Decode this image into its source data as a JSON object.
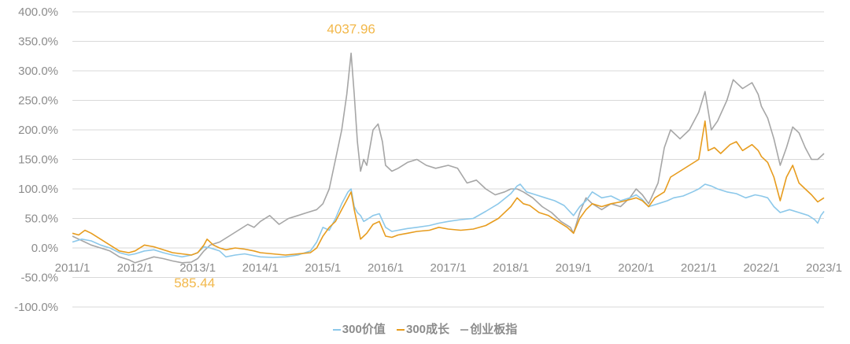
{
  "chart_data": {
    "type": "line",
    "title": "",
    "xlabel": "",
    "ylabel": "",
    "x_ticks": [
      "2011/1",
      "2012/1",
      "2013/1",
      "2014/1",
      "2015/1",
      "2016/1",
      "2017/1",
      "2018/1",
      "2019/1",
      "2020/1",
      "2021/1",
      "2022/1",
      "2023/1"
    ],
    "y_ticks": [
      "400.0%",
      "350.0%",
      "300.0%",
      "250.0%",
      "200.0%",
      "150.0%",
      "100.0%",
      "50.0%",
      "0.0%",
      "-50.0%",
      "-100.0%"
    ],
    "ylim": [
      -100,
      400
    ],
    "xlim": [
      2011.0,
      2023.0
    ],
    "grid": true,
    "legend_position": "bottom",
    "annotations": [
      {
        "text": "4037.96",
        "x": 2015.45,
        "y": 330,
        "color": "#f2b84b"
      },
      {
        "text": "585.44",
        "x": 2012.95,
        "y": -24,
        "color": "#f2b84b"
      }
    ],
    "series": [
      {
        "name": "300价值",
        "color": "#8cc8ea",
        "points": [
          [
            2011.0,
            10
          ],
          [
            2011.15,
            15
          ],
          [
            2011.3,
            12
          ],
          [
            2011.45,
            5
          ],
          [
            2011.6,
            0
          ],
          [
            2011.75,
            -8
          ],
          [
            2011.9,
            -12
          ],
          [
            2012.0,
            -10
          ],
          [
            2012.15,
            -5
          ],
          [
            2012.3,
            -3
          ],
          [
            2012.45,
            -8
          ],
          [
            2012.6,
            -12
          ],
          [
            2012.75,
            -15
          ],
          [
            2012.9,
            -12
          ],
          [
            2013.0,
            -8
          ],
          [
            2013.1,
            2
          ],
          [
            2013.2,
            0
          ],
          [
            2013.35,
            -5
          ],
          [
            2013.45,
            -15
          ],
          [
            2013.6,
            -12
          ],
          [
            2013.75,
            -10
          ],
          [
            2013.9,
            -13
          ],
          [
            2014.0,
            -15
          ],
          [
            2014.2,
            -16
          ],
          [
            2014.4,
            -15
          ],
          [
            2014.6,
            -12
          ],
          [
            2014.8,
            -5
          ],
          [
            2014.9,
            10
          ],
          [
            2015.0,
            35
          ],
          [
            2015.1,
            30
          ],
          [
            2015.2,
            50
          ],
          [
            2015.3,
            75
          ],
          [
            2015.4,
            95
          ],
          [
            2015.45,
            100
          ],
          [
            2015.5,
            70
          ],
          [
            2015.55,
            60
          ],
          [
            2015.6,
            55
          ],
          [
            2015.65,
            45
          ],
          [
            2015.7,
            48
          ],
          [
            2015.8,
            55
          ],
          [
            2015.9,
            58
          ],
          [
            2016.0,
            35
          ],
          [
            2016.1,
            28
          ],
          [
            2016.2,
            30
          ],
          [
            2016.35,
            33
          ],
          [
            2016.5,
            35
          ],
          [
            2016.7,
            38
          ],
          [
            2016.85,
            42
          ],
          [
            2017.0,
            45
          ],
          [
            2017.2,
            48
          ],
          [
            2017.4,
            50
          ],
          [
            2017.6,
            62
          ],
          [
            2017.8,
            75
          ],
          [
            2018.0,
            92
          ],
          [
            2018.1,
            105
          ],
          [
            2018.15,
            108
          ],
          [
            2018.25,
            95
          ],
          [
            2018.4,
            90
          ],
          [
            2018.55,
            85
          ],
          [
            2018.7,
            80
          ],
          [
            2018.85,
            72
          ],
          [
            2019.0,
            55
          ],
          [
            2019.1,
            70
          ],
          [
            2019.2,
            80
          ],
          [
            2019.3,
            95
          ],
          [
            2019.45,
            85
          ],
          [
            2019.6,
            88
          ],
          [
            2019.75,
            80
          ],
          [
            2019.9,
            85
          ],
          [
            2020.0,
            90
          ],
          [
            2020.1,
            82
          ],
          [
            2020.2,
            70
          ],
          [
            2020.35,
            75
          ],
          [
            2020.5,
            80
          ],
          [
            2020.6,
            85
          ],
          [
            2020.75,
            88
          ],
          [
            2020.9,
            95
          ],
          [
            2021.0,
            100
          ],
          [
            2021.1,
            108
          ],
          [
            2021.2,
            105
          ],
          [
            2021.3,
            100
          ],
          [
            2021.45,
            95
          ],
          [
            2021.6,
            92
          ],
          [
            2021.75,
            85
          ],
          [
            2021.9,
            90
          ],
          [
            2022.0,
            88
          ],
          [
            2022.1,
            85
          ],
          [
            2022.2,
            70
          ],
          [
            2022.3,
            60
          ],
          [
            2022.45,
            65
          ],
          [
            2022.6,
            60
          ],
          [
            2022.75,
            55
          ],
          [
            2022.85,
            48
          ],
          [
            2022.9,
            42
          ],
          [
            2022.95,
            55
          ],
          [
            2023.0,
            62
          ]
        ]
      },
      {
        "name": "300成长",
        "color": "#e79c1e",
        "points": [
          [
            2011.0,
            25
          ],
          [
            2011.1,
            22
          ],
          [
            2011.2,
            30
          ],
          [
            2011.3,
            25
          ],
          [
            2011.45,
            15
          ],
          [
            2011.6,
            5
          ],
          [
            2011.75,
            -5
          ],
          [
            2011.9,
            -8
          ],
          [
            2012.0,
            -5
          ],
          [
            2012.15,
            5
          ],
          [
            2012.3,
            2
          ],
          [
            2012.45,
            -3
          ],
          [
            2012.6,
            -8
          ],
          [
            2012.75,
            -10
          ],
          [
            2012.9,
            -12
          ],
          [
            2013.0,
            -8
          ],
          [
            2013.1,
            5
          ],
          [
            2013.15,
            15
          ],
          [
            2013.25,
            5
          ],
          [
            2013.35,
            0
          ],
          [
            2013.45,
            -3
          ],
          [
            2013.6,
            0
          ],
          [
            2013.75,
            -2
          ],
          [
            2013.9,
            -5
          ],
          [
            2014.0,
            -8
          ],
          [
            2014.2,
            -10
          ],
          [
            2014.4,
            -12
          ],
          [
            2014.6,
            -10
          ],
          [
            2014.8,
            -8
          ],
          [
            2014.9,
            0
          ],
          [
            2015.0,
            20
          ],
          [
            2015.1,
            35
          ],
          [
            2015.2,
            45
          ],
          [
            2015.3,
            65
          ],
          [
            2015.4,
            85
          ],
          [
            2015.45,
            95
          ],
          [
            2015.5,
            65
          ],
          [
            2015.55,
            40
          ],
          [
            2015.6,
            15
          ],
          [
            2015.65,
            20
          ],
          [
            2015.7,
            25
          ],
          [
            2015.8,
            40
          ],
          [
            2015.9,
            45
          ],
          [
            2016.0,
            20
          ],
          [
            2016.1,
            18
          ],
          [
            2016.2,
            22
          ],
          [
            2016.35,
            25
          ],
          [
            2016.5,
            28
          ],
          [
            2016.7,
            30
          ],
          [
            2016.85,
            35
          ],
          [
            2017.0,
            32
          ],
          [
            2017.2,
            30
          ],
          [
            2017.4,
            32
          ],
          [
            2017.6,
            38
          ],
          [
            2017.8,
            50
          ],
          [
            2018.0,
            70
          ],
          [
            2018.1,
            85
          ],
          [
            2018.2,
            75
          ],
          [
            2018.3,
            72
          ],
          [
            2018.45,
            60
          ],
          [
            2018.6,
            55
          ],
          [
            2018.75,
            45
          ],
          [
            2018.9,
            35
          ],
          [
            2019.0,
            25
          ],
          [
            2019.1,
            50
          ],
          [
            2019.2,
            65
          ],
          [
            2019.3,
            75
          ],
          [
            2019.45,
            70
          ],
          [
            2019.6,
            75
          ],
          [
            2019.75,
            78
          ],
          [
            2019.9,
            82
          ],
          [
            2020.0,
            85
          ],
          [
            2020.1,
            80
          ],
          [
            2020.2,
            70
          ],
          [
            2020.3,
            85
          ],
          [
            2020.45,
            95
          ],
          [
            2020.55,
            120
          ],
          [
            2020.7,
            130
          ],
          [
            2020.85,
            140
          ],
          [
            2021.0,
            150
          ],
          [
            2021.1,
            215
          ],
          [
            2021.15,
            165
          ],
          [
            2021.25,
            170
          ],
          [
            2021.35,
            160
          ],
          [
            2021.5,
            175
          ],
          [
            2021.6,
            180
          ],
          [
            2021.7,
            165
          ],
          [
            2021.85,
            175
          ],
          [
            2021.95,
            165
          ],
          [
            2022.0,
            155
          ],
          [
            2022.1,
            145
          ],
          [
            2022.2,
            120
          ],
          [
            2022.3,
            80
          ],
          [
            2022.4,
            120
          ],
          [
            2022.5,
            140
          ],
          [
            2022.6,
            110
          ],
          [
            2022.7,
            100
          ],
          [
            2022.8,
            90
          ],
          [
            2022.9,
            78
          ],
          [
            2023.0,
            85
          ]
        ]
      },
      {
        "name": "创业板指",
        "color": "#a6a6a6",
        "points": [
          [
            2011.0,
            20
          ],
          [
            2011.1,
            15
          ],
          [
            2011.2,
            10
          ],
          [
            2011.3,
            5
          ],
          [
            2011.45,
            0
          ],
          [
            2011.6,
            -5
          ],
          [
            2011.75,
            -15
          ],
          [
            2011.9,
            -20
          ],
          [
            2012.0,
            -25
          ],
          [
            2012.15,
            -20
          ],
          [
            2012.3,
            -15
          ],
          [
            2012.45,
            -18
          ],
          [
            2012.6,
            -22
          ],
          [
            2012.75,
            -25
          ],
          [
            2012.9,
            -24
          ],
          [
            2013.0,
            -18
          ],
          [
            2013.1,
            -5
          ],
          [
            2013.2,
            5
          ],
          [
            2013.35,
            10
          ],
          [
            2013.5,
            20
          ],
          [
            2013.65,
            30
          ],
          [
            2013.8,
            40
          ],
          [
            2013.9,
            35
          ],
          [
            2014.0,
            45
          ],
          [
            2014.15,
            55
          ],
          [
            2014.3,
            40
          ],
          [
            2014.45,
            50
          ],
          [
            2014.6,
            55
          ],
          [
            2014.75,
            60
          ],
          [
            2014.9,
            65
          ],
          [
            2015.0,
            75
          ],
          [
            2015.1,
            100
          ],
          [
            2015.2,
            150
          ],
          [
            2015.3,
            200
          ],
          [
            2015.38,
            260
          ],
          [
            2015.45,
            330
          ],
          [
            2015.5,
            260
          ],
          [
            2015.55,
            180
          ],
          [
            2015.6,
            130
          ],
          [
            2015.65,
            150
          ],
          [
            2015.7,
            140
          ],
          [
            2015.8,
            200
          ],
          [
            2015.88,
            210
          ],
          [
            2015.95,
            180
          ],
          [
            2016.0,
            140
          ],
          [
            2016.1,
            130
          ],
          [
            2016.2,
            135
          ],
          [
            2016.35,
            145
          ],
          [
            2016.5,
            150
          ],
          [
            2016.65,
            140
          ],
          [
            2016.8,
            135
          ],
          [
            2017.0,
            140
          ],
          [
            2017.15,
            135
          ],
          [
            2017.3,
            110
          ],
          [
            2017.45,
            115
          ],
          [
            2017.6,
            100
          ],
          [
            2017.75,
            90
          ],
          [
            2017.9,
            95
          ],
          [
            2018.0,
            100
          ],
          [
            2018.1,
            100
          ],
          [
            2018.2,
            95
          ],
          [
            2018.35,
            85
          ],
          [
            2018.5,
            70
          ],
          [
            2018.65,
            60
          ],
          [
            2018.8,
            45
          ],
          [
            2018.95,
            35
          ],
          [
            2019.0,
            25
          ],
          [
            2019.1,
            60
          ],
          [
            2019.2,
            85
          ],
          [
            2019.3,
            75
          ],
          [
            2019.45,
            65
          ],
          [
            2019.6,
            75
          ],
          [
            2019.75,
            70
          ],
          [
            2019.9,
            85
          ],
          [
            2020.0,
            100
          ],
          [
            2020.1,
            90
          ],
          [
            2020.2,
            75
          ],
          [
            2020.35,
            110
          ],
          [
            2020.45,
            170
          ],
          [
            2020.55,
            200
          ],
          [
            2020.7,
            185
          ],
          [
            2020.85,
            200
          ],
          [
            2021.0,
            230
          ],
          [
            2021.1,
            265
          ],
          [
            2021.2,
            200
          ],
          [
            2021.3,
            215
          ],
          [
            2021.45,
            250
          ],
          [
            2021.55,
            285
          ],
          [
            2021.7,
            270
          ],
          [
            2021.85,
            280
          ],
          [
            2021.95,
            260
          ],
          [
            2022.0,
            240
          ],
          [
            2022.1,
            220
          ],
          [
            2022.2,
            185
          ],
          [
            2022.3,
            140
          ],
          [
            2022.4,
            170
          ],
          [
            2022.5,
            205
          ],
          [
            2022.6,
            195
          ],
          [
            2022.7,
            170
          ],
          [
            2022.8,
            150
          ],
          [
            2022.9,
            150
          ],
          [
            2023.0,
            160
          ]
        ]
      }
    ]
  }
}
